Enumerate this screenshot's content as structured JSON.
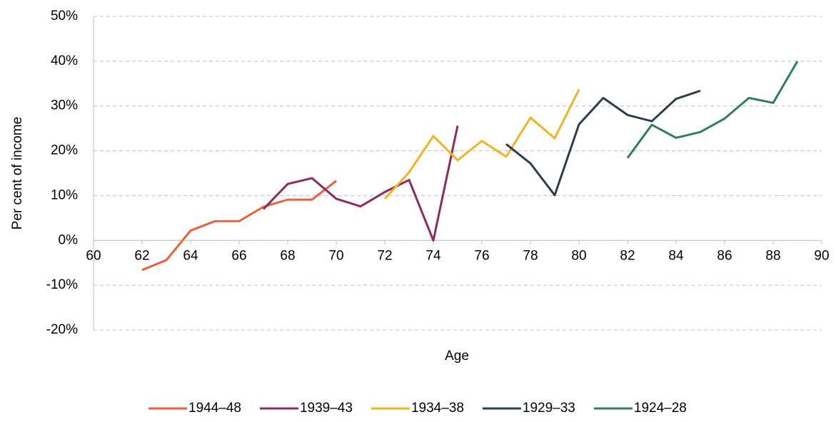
{
  "chart_data": {
    "type": "line",
    "x_label": "Age",
    "y_label": "Per cent of income",
    "xlim": [
      60,
      90
    ],
    "xticks": [
      60,
      62,
      64,
      66,
      68,
      70,
      72,
      74,
      76,
      78,
      80,
      82,
      84,
      86,
      88,
      90
    ],
    "ylim": [
      -20,
      50
    ],
    "yticks": [
      {
        "value": -20,
        "label": "-20%"
      },
      {
        "value": -10,
        "label": "-10%"
      },
      {
        "value": 0,
        "label": "0%"
      },
      {
        "value": 10,
        "label": "10%"
      },
      {
        "value": 20,
        "label": "20%"
      },
      {
        "value": 30,
        "label": "30%"
      },
      {
        "value": 40,
        "label": "40%"
      },
      {
        "value": 50,
        "label": "50%"
      }
    ],
    "grid": true,
    "legend": "bottom",
    "series": [
      {
        "name": "1944–48",
        "color": "#e8603c",
        "x": [
          62,
          63,
          64,
          65,
          66,
          67,
          68,
          69,
          70
        ],
        "values": [
          -6.6,
          -4.4,
          2.2,
          4.3,
          4.3,
          7.5,
          9.1,
          9.1,
          13.3
        ]
      },
      {
        "name": "1939–43",
        "color": "#8b2c5b",
        "x": [
          67,
          68,
          69,
          70,
          71,
          72,
          73,
          74,
          75
        ],
        "values": [
          7,
          12.6,
          13.9,
          9.3,
          7.6,
          10.8,
          13.5,
          0,
          25.6
        ]
      },
      {
        "name": "1934–38",
        "color": "#f0b323",
        "x": [
          72,
          73,
          74,
          75,
          76,
          77,
          78,
          79,
          80
        ],
        "values": [
          9.3,
          15.2,
          23.3,
          17.9,
          22.2,
          18.7,
          27.4,
          22.8,
          33.7
        ]
      },
      {
        "name": "1929–33",
        "color": "#2b3e4a",
        "x": [
          77,
          78,
          79,
          80,
          81,
          82,
          83,
          84,
          85
        ],
        "values": [
          21.5,
          17.2,
          10.1,
          25.9,
          31.8,
          28,
          26.6,
          31.6,
          33.4
        ]
      },
      {
        "name": "1924–28",
        "color": "#2e7d63",
        "x": [
          82,
          83,
          84,
          85,
          86,
          87,
          88,
          89
        ],
        "values": [
          18.4,
          25.8,
          22.9,
          24.2,
          27.2,
          31.8,
          30.7,
          40
        ]
      }
    ]
  }
}
